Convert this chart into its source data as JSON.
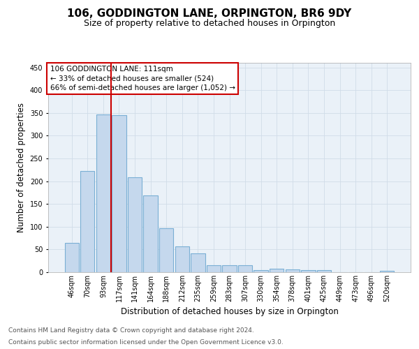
{
  "title": "106, GODDINGTON LANE, ORPINGTON, BR6 9DY",
  "subtitle": "Size of property relative to detached houses in Orpington",
  "xlabel": "Distribution of detached houses by size in Orpington",
  "ylabel": "Number of detached properties",
  "categories": [
    "46sqm",
    "70sqm",
    "93sqm",
    "117sqm",
    "141sqm",
    "164sqm",
    "188sqm",
    "212sqm",
    "235sqm",
    "259sqm",
    "283sqm",
    "307sqm",
    "330sqm",
    "354sqm",
    "378sqm",
    "401sqm",
    "425sqm",
    "449sqm",
    "473sqm",
    "496sqm",
    "520sqm"
  ],
  "values": [
    65,
    222,
    347,
    345,
    208,
    168,
    97,
    57,
    42,
    15,
    15,
    15,
    5,
    7,
    6,
    4,
    5,
    0,
    0,
    0,
    3
  ],
  "bar_color": "#c5d8ed",
  "bar_edgecolor": "#7aafd4",
  "bar_linewidth": 0.8,
  "vline_x": 2.5,
  "vline_color": "#cc0000",
  "vline_linewidth": 1.5,
  "annotation_lines": [
    "106 GODDINGTON LANE: 111sqm",
    "← 33% of detached houses are smaller (524)",
    "66% of semi-detached houses are larger (1,052) →"
  ],
  "annotation_box_color": "#ffffff",
  "annotation_box_edgecolor": "#cc0000",
  "ylim": [
    0,
    460
  ],
  "yticks": [
    0,
    50,
    100,
    150,
    200,
    250,
    300,
    350,
    400,
    450
  ],
  "grid_color": "#d0dce8",
  "bg_color": "#eaf1f8",
  "footer_line1": "Contains HM Land Registry data © Crown copyright and database right 2024.",
  "footer_line2": "Contains public sector information licensed under the Open Government Licence v3.0.",
  "title_fontsize": 11,
  "subtitle_fontsize": 9,
  "xlabel_fontsize": 8.5,
  "ylabel_fontsize": 8.5,
  "tick_fontsize": 7,
  "annotation_fontsize": 7.5,
  "footer_fontsize": 6.5
}
